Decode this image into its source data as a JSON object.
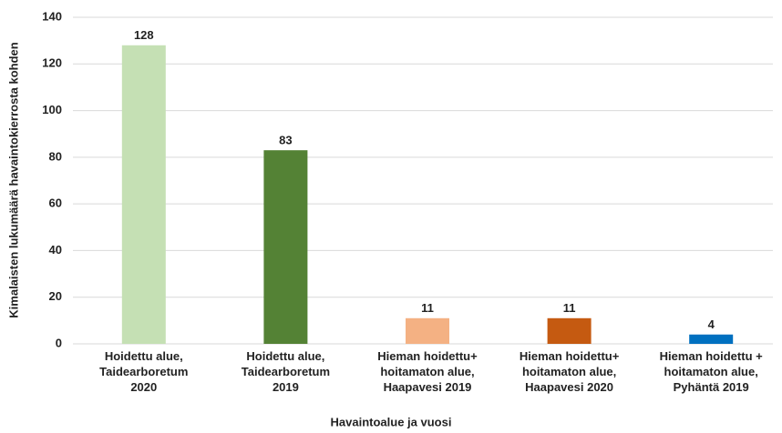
{
  "chart_data": {
    "type": "bar",
    "x_label": "Havaintoalue ja vuosi",
    "y_label": "Kimalaisten lukumäärä havaintokierrosta kohden",
    "categories": [
      "Hoidettu alue,\nTaidearboretum\n2020",
      "Hoidettu alue,\nTaidearboretum\n2019",
      "Hieman hoidettu+\nhoitamaton alue,\nHaapavesi 2019",
      "Hieman hoidettu+\nhoitamaton alue,\nHaapavesi 2020",
      "Hieman hoidettu +\nhoitamaton alue,\nPyhäntä 2019"
    ],
    "values": [
      128,
      83,
      11,
      11,
      4
    ],
    "colors": [
      "#c5e0b4",
      "#548235",
      "#f4b183",
      "#c55a11",
      "#0070c0"
    ],
    "ylim": [
      0,
      140
    ],
    "yticks": [
      0,
      20,
      40,
      60,
      80,
      100,
      120,
      140
    ],
    "grid": true
  }
}
